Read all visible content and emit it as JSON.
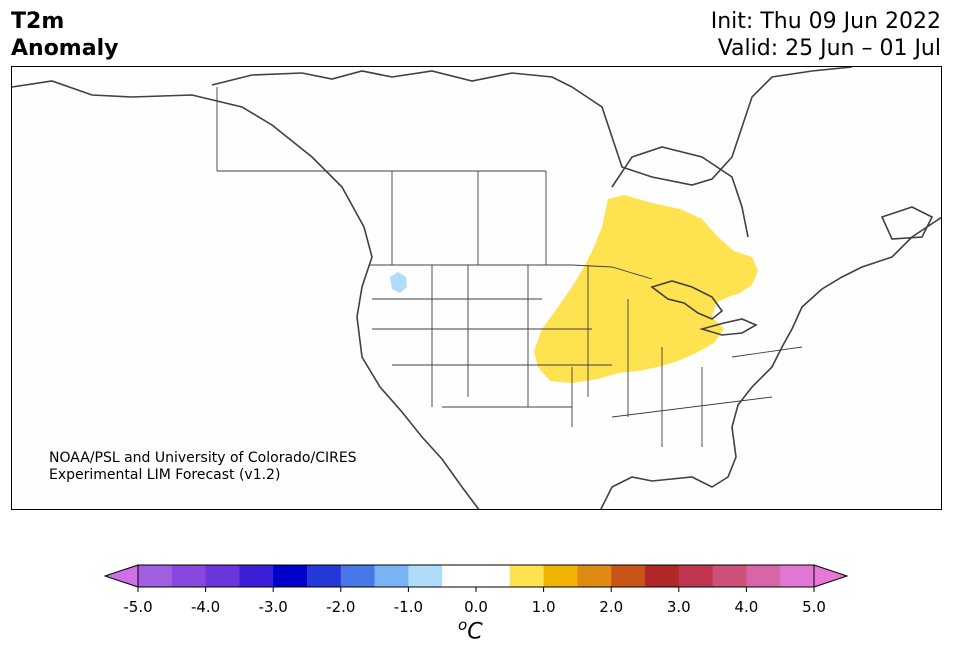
{
  "header": {
    "title_line1": "T2m",
    "title_line2": "Anomaly",
    "init": "Init: Thu 09 Jun 2022",
    "valid": "Valid: 25 Jun – 01 Jul"
  },
  "map": {
    "credit_line1": "NOAA/PSL and University of Colorado/CIRES",
    "credit_line2": "Experimental LIM Forecast (v1.2)",
    "region": "North America",
    "anomaly_regions": [
      {
        "name": "warm-anomaly-central-us",
        "category": "0.5 to 1.0",
        "color": "#ffe24f"
      },
      {
        "name": "cool-anomaly-pacific-northwest",
        "category": "-1.0 to -0.5",
        "color": "#a9dcfb"
      }
    ]
  },
  "colorbar": {
    "unit_base": "C",
    "unit_sup": "o",
    "ticks": [
      "-5.0",
      "-4.0",
      "-3.0",
      "-2.0",
      "-1.0",
      "0.0",
      "1.0",
      "2.0",
      "3.0",
      "4.0",
      "5.0"
    ],
    "under_color": "#d070e8",
    "over_color": "#e878d8",
    "bins": [
      {
        "range": "-5.0 to -4.5",
        "color": "#a060e0"
      },
      {
        "range": "-4.5 to -4.0",
        "color": "#8848e0"
      },
      {
        "range": "-4.0 to -3.5",
        "color": "#6a36da"
      },
      {
        "range": "-3.5 to -3.0",
        "color": "#3a20d6"
      },
      {
        "range": "-3.0 to -2.5",
        "color": "#0000c8"
      },
      {
        "range": "-2.5 to -2.0",
        "color": "#2438d8"
      },
      {
        "range": "-2.0 to -1.5",
        "color": "#4878e6"
      },
      {
        "range": "-1.5 to -1.0",
        "color": "#78b4f4"
      },
      {
        "range": "-1.0 to -0.5",
        "color": "#b0dcfa"
      },
      {
        "range": "-0.5 to 0.0",
        "color": "#ffffff"
      },
      {
        "range": "0.0 to 0.5",
        "color": "#ffffff"
      },
      {
        "range": "0.5 to 1.0",
        "color": "#ffe24f"
      },
      {
        "range": "1.0 to 1.5",
        "color": "#f0b400"
      },
      {
        "range": "1.5 to 2.0",
        "color": "#de8a14"
      },
      {
        "range": "2.0 to 2.5",
        "color": "#c85418"
      },
      {
        "range": "2.5 to 3.0",
        "color": "#b02828"
      },
      {
        "range": "3.0 to 3.5",
        "color": "#c03650"
      },
      {
        "range": "3.5 to 4.0",
        "color": "#cc5078"
      },
      {
        "range": "4.0 to 4.5",
        "color": "#d865a8"
      },
      {
        "range": "4.5 to 5.0",
        "color": "#e378d4"
      }
    ]
  }
}
